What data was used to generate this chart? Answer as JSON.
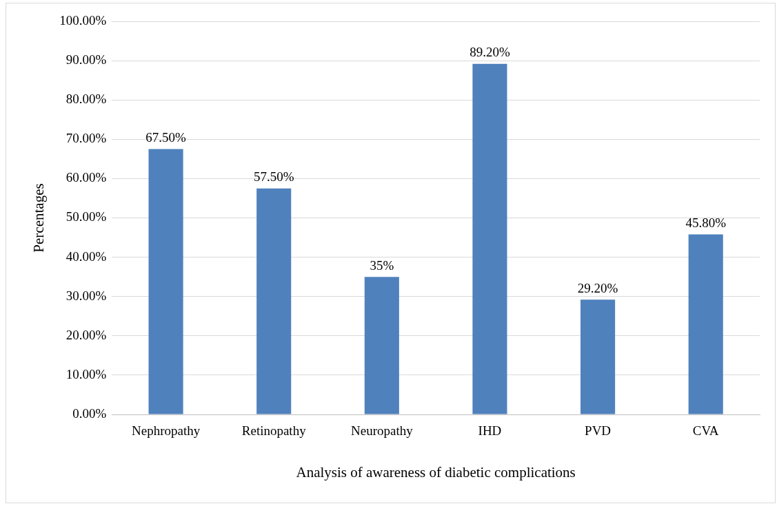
{
  "chart_data": {
    "type": "bar",
    "xlabel": "Analysis of awareness of diabetic complications",
    "ylabel": "Percentages",
    "categories": [
      "Nephropathy",
      "Retinopathy",
      "Neuropathy",
      "IHD",
      "PVD",
      "CVA"
    ],
    "values": [
      67.5,
      57.5,
      35,
      89.2,
      29.2,
      45.8
    ],
    "value_labels": [
      "67.50%",
      "57.50%",
      "35%",
      "89.20%",
      "29.20%",
      "45.80%"
    ],
    "color": "#4f81bd",
    "ylim": [
      0,
      100
    ],
    "yticks": [
      {
        "value": 0,
        "label": "0.00%"
      },
      {
        "value": 10,
        "label": "10.00%"
      },
      {
        "value": 20,
        "label": "20.00%"
      },
      {
        "value": 30,
        "label": "30.00%"
      },
      {
        "value": 40,
        "label": "40.00%"
      },
      {
        "value": 50,
        "label": "50.00%"
      },
      {
        "value": 60,
        "label": "60.00%"
      },
      {
        "value": 70,
        "label": "70.00%"
      },
      {
        "value": 80,
        "label": "80.00%"
      },
      {
        "value": 90,
        "label": "90.00%"
      },
      {
        "value": 100,
        "label": "100.00%"
      }
    ],
    "grid": "y",
    "legend": false
  }
}
